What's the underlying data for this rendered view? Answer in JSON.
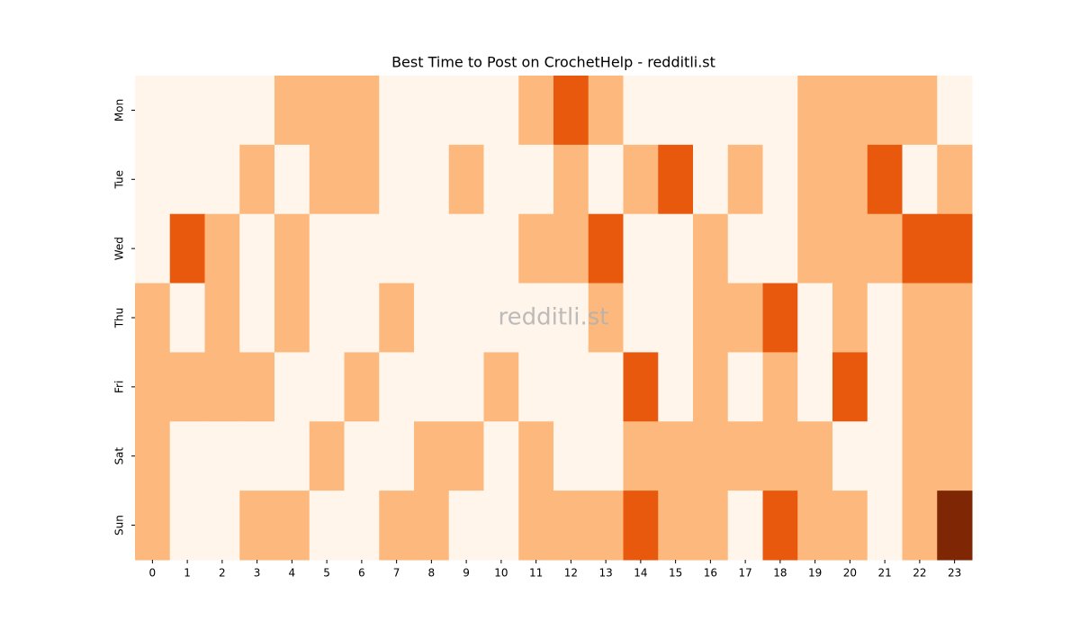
{
  "chart_data": {
    "type": "heatmap",
    "title": "Best Time to Post on CrochetHelp - redditli.st",
    "watermark": "redditli.st",
    "x": [
      0,
      1,
      2,
      3,
      4,
      5,
      6,
      7,
      8,
      9,
      10,
      11,
      12,
      13,
      14,
      15,
      16,
      17,
      18,
      19,
      20,
      21,
      22,
      23
    ],
    "y": [
      "Mon",
      "Tue",
      "Wed",
      "Thu",
      "Fri",
      "Sat",
      "Sun"
    ],
    "colors": [
      "#fff5eb",
      "#fdb97d",
      "#e9590d",
      "#7f2704"
    ],
    "values": [
      [
        0,
        0,
        0,
        0,
        1,
        1,
        1,
        0,
        0,
        0,
        0,
        1,
        2,
        1,
        0,
        0,
        0,
        0,
        0,
        1,
        1,
        1,
        1,
        0
      ],
      [
        0,
        0,
        0,
        1,
        0,
        1,
        1,
        0,
        0,
        1,
        0,
        0,
        1,
        0,
        1,
        2,
        0,
        1,
        0,
        1,
        1,
        2,
        0,
        1
      ],
      [
        0,
        2,
        1,
        0,
        1,
        0,
        0,
        0,
        0,
        0,
        0,
        1,
        1,
        2,
        0,
        0,
        1,
        0,
        0,
        1,
        1,
        1,
        2,
        2
      ],
      [
        1,
        0,
        1,
        0,
        1,
        0,
        0,
        1,
        0,
        0,
        0,
        0,
        0,
        1,
        0,
        0,
        1,
        1,
        2,
        0,
        1,
        0,
        1,
        1
      ],
      [
        1,
        1,
        1,
        1,
        0,
        0,
        1,
        0,
        0,
        0,
        1,
        0,
        0,
        0,
        2,
        0,
        1,
        0,
        1,
        0,
        2,
        0,
        1,
        1
      ],
      [
        1,
        0,
        0,
        0,
        0,
        1,
        0,
        0,
        1,
        1,
        0,
        1,
        0,
        0,
        1,
        1,
        1,
        1,
        1,
        1,
        0,
        0,
        1,
        1
      ],
      [
        1,
        0,
        0,
        1,
        1,
        0,
        0,
        1,
        1,
        0,
        0,
        1,
        1,
        1,
        2,
        1,
        1,
        0,
        2,
        1,
        1,
        0,
        1,
        3
      ]
    ]
  }
}
